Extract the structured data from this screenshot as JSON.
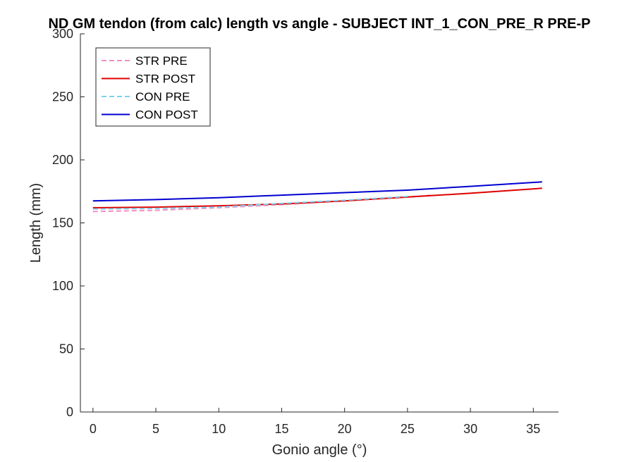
{
  "chart_data": {
    "type": "line",
    "title": "ND GM tendon (from calc) length vs angle - SUBJECT INT_1_CON_PRE_R PRE-P",
    "xlabel": "Gonio angle (°)",
    "ylabel": "Length (mm)",
    "xlim": [
      -1,
      37
    ],
    "ylim": [
      0,
      300
    ],
    "xticks": [
      0,
      5,
      10,
      15,
      20,
      25,
      30,
      35
    ],
    "yticks": [
      0,
      50,
      100,
      150,
      200,
      250,
      300
    ],
    "grid": false,
    "legend_position": "top-left",
    "series": [
      {
        "name": "STR PRE",
        "color": "#f590c0",
        "dash": "dashed",
        "x": [
          0,
          5,
          10,
          15,
          20,
          25,
          27
        ],
        "y": [
          159,
          160,
          162,
          164.5,
          167.5,
          170.5,
          172
        ]
      },
      {
        "name": "STR POST",
        "color": "#e00000",
        "dash": "solid",
        "x": [
          0,
          5,
          10,
          15,
          20,
          25,
          30,
          35.7
        ],
        "y": [
          162,
          162.5,
          163.5,
          165,
          167.5,
          170.5,
          173.5,
          177.5
        ]
      },
      {
        "name": "CON PRE",
        "color": "#7fd0f0",
        "dash": "dashed",
        "x": [
          0,
          5,
          10,
          15,
          20,
          25
        ],
        "y": [
          161,
          161.5,
          162.5,
          165.5,
          168,
          171
        ]
      },
      {
        "name": "CON POST",
        "color": "#0000d0",
        "dash": "solid",
        "x": [
          0,
          5,
          10,
          15,
          20,
          25,
          30,
          35.7
        ],
        "y": [
          167.5,
          168.5,
          170,
          172,
          174,
          176,
          179,
          182.5
        ]
      }
    ]
  }
}
